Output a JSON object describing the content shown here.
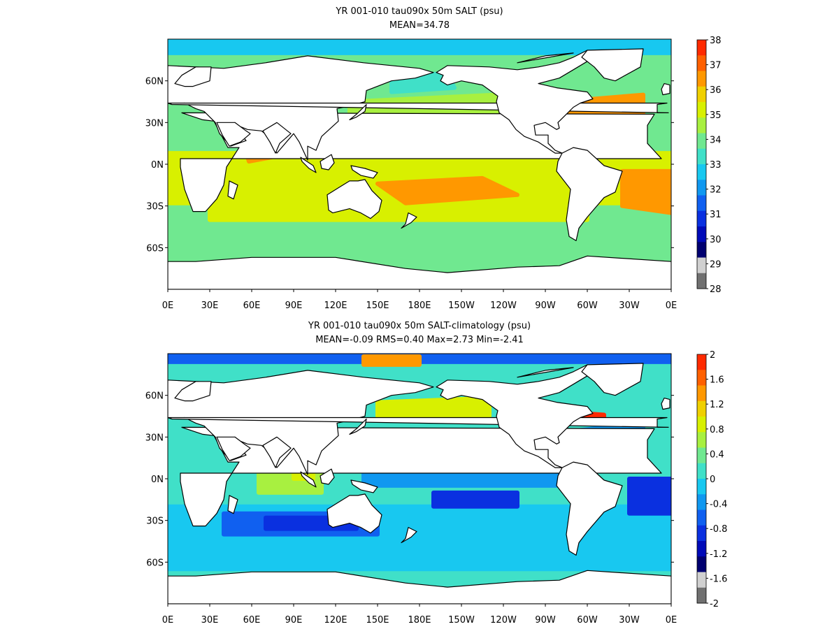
{
  "panels": [
    {
      "id": "top",
      "title": "YR 001-010 tau090x 50m SALT (psu)",
      "subtitle": "MEAN=34.78",
      "colorbar": {
        "labels": [
          "38",
          "37",
          "36",
          "35",
          "34",
          "33",
          "32",
          "31",
          "30",
          "29",
          "28"
        ],
        "colors": [
          "#ff2a00",
          "#ff6000",
          "#ff9800",
          "#f0d000",
          "#d8f000",
          "#a8f040",
          "#70e890",
          "#40e0c8",
          "#18c8f0",
          "#1098f0",
          "#1060f0",
          "#0a30e0",
          "#000ab8",
          "#000070",
          "#d0d0d0",
          "#707070"
        ]
      }
    },
    {
      "id": "bottom",
      "title": "YR 001-010 tau090x 50m SALT-climatology (psu)",
      "subtitle": "MEAN=-0.09   RMS=0.40   Max=2.73   Min=-2.41",
      "colorbar": {
        "labels": [
          "2",
          "1.6",
          "1.2",
          "0.8",
          "0.4",
          "0",
          "-0.4",
          "-0.8",
          "-1.2",
          "-1.6",
          "-2"
        ],
        "colors": [
          "#ff2a00",
          "#ff6000",
          "#ff9800",
          "#f0d000",
          "#d8f000",
          "#a8f040",
          "#70e890",
          "#40e0c8",
          "#18c8f0",
          "#1098f0",
          "#1060f0",
          "#0a30e0",
          "#000ab8",
          "#000070",
          "#d0d0d0",
          "#707070"
        ]
      }
    }
  ],
  "x_ticks": [
    "0E",
    "30E",
    "60E",
    "90E",
    "120E",
    "150E",
    "180E",
    "150W",
    "120W",
    "90W",
    "60W",
    "30W",
    "0E"
  ],
  "y_ticks": [
    "60N",
    "30N",
    "0N",
    "30S",
    "60S"
  ]
}
